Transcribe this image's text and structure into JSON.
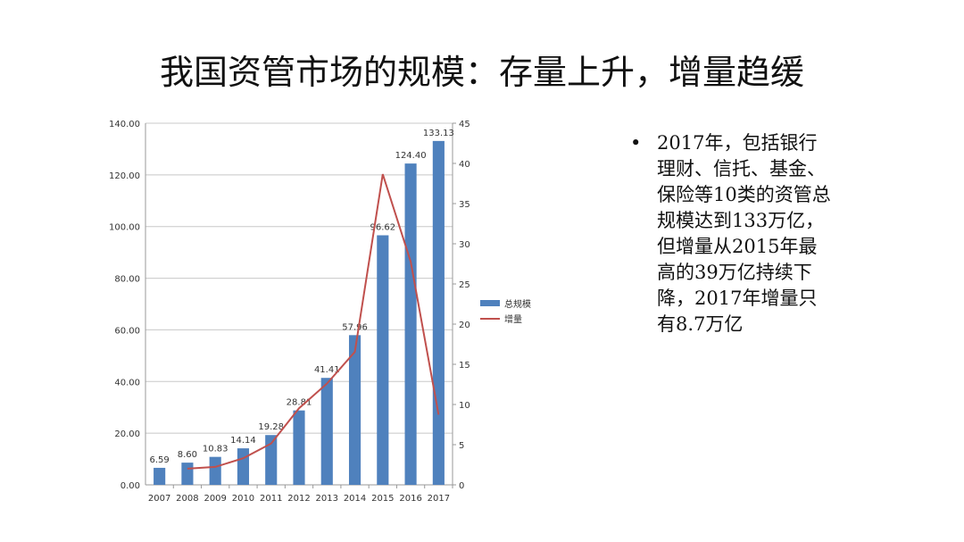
{
  "title": "我国资管市场的规模：存量上升，增量趋缓",
  "bullet": {
    "marker": "•",
    "text": "2017年，包括银行理财、信托、基金、保险等10类的资管总规模达到133万亿，但增量从2015年最高的39万亿持续下降，2017年增量只有8.7万亿"
  },
  "chart_data": {
    "type": "bar+line",
    "categories": [
      "2007",
      "2008",
      "2009",
      "2010",
      "2011",
      "2012",
      "2013",
      "2014",
      "2015",
      "2016",
      "2017"
    ],
    "series": [
      {
        "name": "总规模",
        "type": "bar",
        "axis": "left",
        "color": "#4f81bd",
        "values": [
          6.59,
          8.6,
          10.83,
          14.14,
          19.28,
          28.81,
          41.41,
          57.96,
          96.62,
          124.4,
          133.13
        ],
        "labels": [
          "6.59",
          "8.60",
          "10.83",
          "14.14",
          "19.28",
          "28.81",
          "41.41",
          "57.96",
          "96.62",
          "124.40",
          "133.13"
        ]
      },
      {
        "name": "增量",
        "type": "line",
        "axis": "right",
        "color": "#c0504d",
        "values": [
          null,
          2.01,
          2.23,
          3.31,
          5.14,
          9.53,
          12.6,
          16.55,
          38.66,
          27.78,
          8.73
        ]
      }
    ],
    "y_left": {
      "range": [
        0,
        140
      ],
      "ticks": [
        "0.00",
        "20.00",
        "40.00",
        "60.00",
        "80.00",
        "100.00",
        "120.00",
        "140.00"
      ]
    },
    "y_right": {
      "range": [
        0,
        45
      ],
      "ticks": [
        "0",
        "5",
        "10",
        "15",
        "20",
        "25",
        "30",
        "35",
        "40",
        "45"
      ]
    },
    "grid": true,
    "legend": "right"
  }
}
